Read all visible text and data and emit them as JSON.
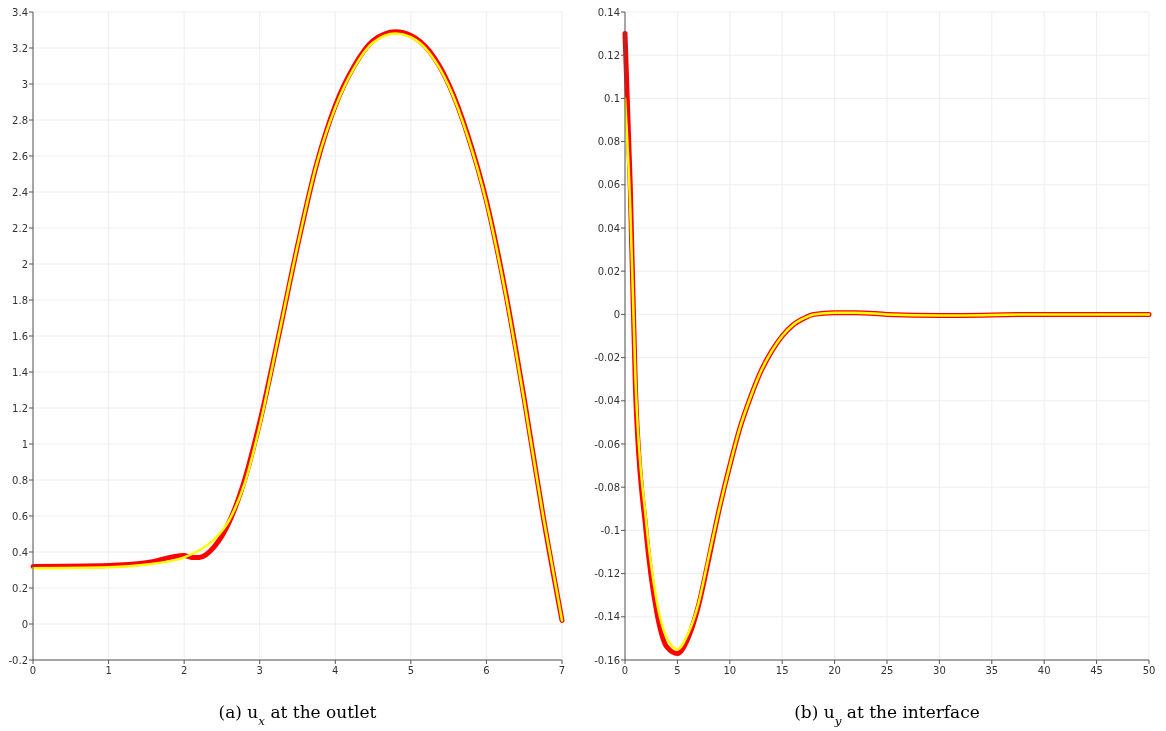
{
  "chart_data": [
    {
      "type": "line",
      "title": "(a) u$_{x}$ at the outlet",
      "grid": true,
      "xlim": [
        0,
        7
      ],
      "xticks": [
        0,
        1,
        2,
        3,
        4,
        5,
        6,
        7
      ],
      "ylim": [
        -0.2,
        3.4
      ],
      "yticks": [
        -0.2,
        0,
        0.2,
        0.4,
        0.6,
        0.8,
        1,
        1.2,
        1.4,
        1.6,
        1.8,
        2,
        2.2,
        2.4,
        2.6,
        2.8,
        3,
        3.2,
        3.4
      ],
      "series": [
        {
          "color": "#ff0000",
          "x": [
            0,
            1,
            1.5,
            2,
            2.1,
            2.2,
            2.4,
            2.6,
            2.8,
            3,
            3.25,
            3.5,
            3.75,
            4,
            4.25,
            4.5,
            4.8,
            5,
            5.25,
            5.5,
            5.75,
            6,
            6.25,
            6.5,
            6.75,
            7
          ],
          "values": [
            0.32,
            0.325,
            0.34,
            0.38,
            0.37,
            0.37,
            0.43,
            0.57,
            0.8,
            1.12,
            1.6,
            2.1,
            2.55,
            2.88,
            3.1,
            3.24,
            3.29,
            3.27,
            3.18,
            3.0,
            2.72,
            2.35,
            1.85,
            1.25,
            0.6,
            0.02
          ]
        },
        {
          "color": "#ffff00",
          "x": [
            0,
            1,
            1.5,
            2,
            2.2,
            2.4,
            2.6,
            2.8,
            3,
            3.25,
            3.5,
            3.75,
            4,
            4.25,
            4.5,
            4.8,
            5,
            5.25,
            5.5,
            5.75,
            6,
            6.25,
            6.5,
            6.75,
            7
          ],
          "values": [
            0.31,
            0.315,
            0.33,
            0.37,
            0.41,
            0.47,
            0.58,
            0.78,
            1.1,
            1.6,
            2.1,
            2.55,
            2.87,
            3.09,
            3.23,
            3.28,
            3.26,
            3.17,
            2.99,
            2.71,
            2.34,
            1.84,
            1.24,
            0.6,
            0.02
          ]
        }
      ]
    },
    {
      "type": "line",
      "title": "(b) u$_{y}$ at the interface",
      "grid": true,
      "xlim": [
        0,
        50
      ],
      "xticks": [
        0,
        5,
        10,
        15,
        20,
        25,
        30,
        35,
        40,
        45,
        50
      ],
      "ylim": [
        -0.16,
        0.14
      ],
      "yticks": [
        -0.16,
        -0.14,
        -0.12,
        -0.1,
        -0.08,
        -0.06,
        -0.04,
        -0.02,
        0,
        0.02,
        0.04,
        0.06,
        0.08,
        0.1,
        0.12,
        0.14
      ],
      "series": [
        {
          "color": "#ff0000",
          "x": [
            0,
            0.5,
            1,
            2,
            3,
            4,
            5,
            6,
            7,
            8,
            9,
            10,
            11,
            12,
            13,
            14,
            15,
            16,
            17,
            18,
            20,
            22,
            25,
            30,
            40,
            50
          ],
          "values": [
            0.13,
            0.06,
            -0.035,
            -0.1,
            -0.137,
            -0.154,
            -0.157,
            -0.15,
            -0.135,
            -0.113,
            -0.09,
            -0.07,
            -0.052,
            -0.038,
            -0.026,
            -0.017,
            -0.01,
            -0.005,
            -0.002,
            0,
            0.0008,
            0.0008,
            0,
            -0.0005,
            0,
            0
          ]
        },
        {
          "color": "#ffff00",
          "x": [
            0,
            0.5,
            1,
            2,
            3,
            4,
            5,
            6,
            7,
            8,
            9,
            10,
            11,
            12,
            13,
            14,
            15,
            16,
            17,
            18,
            20,
            22,
            25,
            30,
            40,
            50
          ],
          "values": [
            0.1,
            0.05,
            -0.03,
            -0.095,
            -0.132,
            -0.15,
            -0.155,
            -0.148,
            -0.134,
            -0.112,
            -0.09,
            -0.07,
            -0.052,
            -0.038,
            -0.026,
            -0.017,
            -0.01,
            -0.005,
            -0.002,
            0,
            0.0008,
            0.0008,
            0,
            -0.0005,
            0,
            0
          ]
        }
      ]
    }
  ]
}
